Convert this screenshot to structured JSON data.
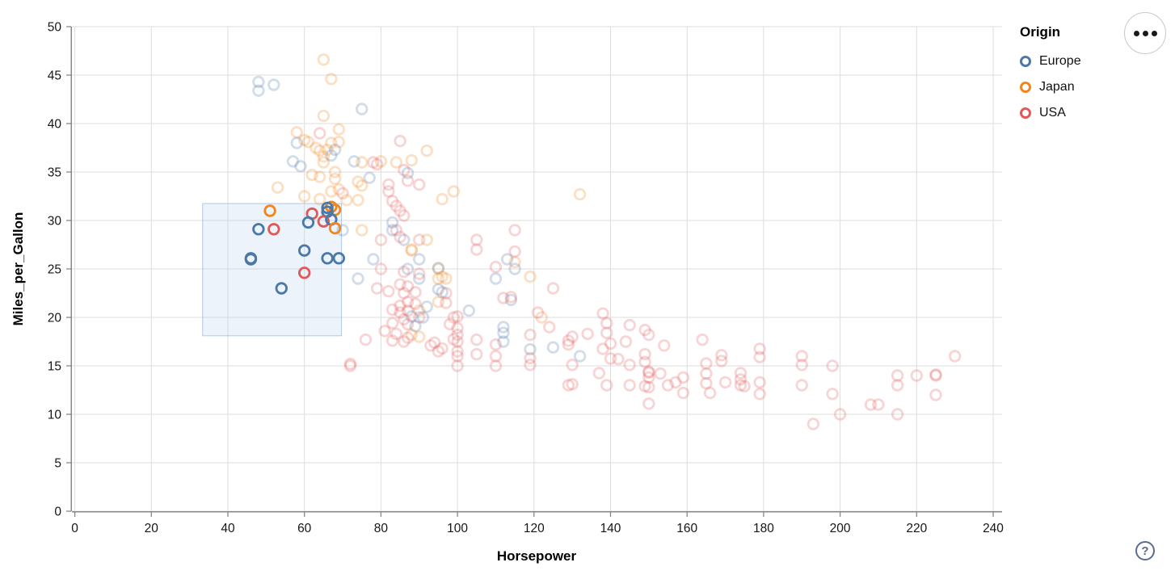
{
  "legend": {
    "title": "Origin",
    "items": [
      {
        "label": "Europe",
        "color": "#4c78a8"
      },
      {
        "label": "Japan",
        "color": "#f58518"
      },
      {
        "label": "USA",
        "color": "#e45756"
      }
    ]
  },
  "menu_button": {
    "icon": "ellipsis-icon"
  },
  "help_button": {
    "glyph": "?"
  },
  "chart_data": {
    "type": "scatter",
    "title": "",
    "xlabel": "Horsepower",
    "ylabel": "Miles_per_Gallon",
    "xlim": [
      0,
      240
    ],
    "ylim": [
      0,
      50
    ],
    "x_ticks": [
      0,
      20,
      40,
      60,
      80,
      100,
      120,
      140,
      160,
      180,
      200,
      220,
      240
    ],
    "y_ticks": [
      0,
      5,
      10,
      15,
      20,
      25,
      30,
      35,
      40,
      45,
      50
    ],
    "grid": true,
    "legend_position": "top-right",
    "mark": "open-circle",
    "unselected_opacity": 0.25,
    "origins": {
      "E": "Europe",
      "J": "Japan",
      "U": "USA"
    },
    "origin_colors": {
      "E": "#4c78a8",
      "J": "#f58518",
      "U": "#e45756"
    },
    "brush_selection": {
      "x": [
        33.4,
        69.7
      ],
      "y": [
        18.1,
        31.75
      ]
    },
    "selected_points": [
      [
        51,
        31,
        "J"
      ],
      [
        62,
        30.7,
        "U"
      ],
      [
        67,
        31.4,
        "J"
      ],
      [
        68,
        31.1,
        "J"
      ],
      [
        66,
        31.3,
        "E"
      ],
      [
        66,
        30.9,
        "E"
      ],
      [
        61,
        29.8,
        "E"
      ],
      [
        65,
        29.9,
        "U"
      ],
      [
        67,
        30.1,
        "E"
      ],
      [
        68,
        29.2,
        "J"
      ],
      [
        48,
        29.1,
        "E"
      ],
      [
        52,
        29.1,
        "U"
      ],
      [
        60,
        26.9,
        "E"
      ],
      [
        46,
        26,
        "E"
      ],
      [
        46,
        26.1,
        "E"
      ],
      [
        66,
        26.1,
        "E"
      ],
      [
        69,
        26.1,
        "E"
      ],
      [
        60,
        24.6,
        "U"
      ],
      [
        54,
        23,
        "E"
      ]
    ],
    "points": [
      [
        65,
        46.6,
        "J"
      ],
      [
        67,
        44.6,
        "J"
      ],
      [
        48,
        44.3,
        "E"
      ],
      [
        48,
        43.4,
        "E"
      ],
      [
        52,
        44,
        "E"
      ],
      [
        75,
        41.5,
        "E"
      ],
      [
        65,
        40.8,
        "J"
      ],
      [
        58,
        39.1,
        "J"
      ],
      [
        64,
        39,
        "U"
      ],
      [
        61,
        38.1,
        "J"
      ],
      [
        58,
        38,
        "E"
      ],
      [
        60,
        38.3,
        "J"
      ],
      [
        63,
        37.5,
        "J"
      ],
      [
        64,
        37.2,
        "J"
      ],
      [
        67,
        38,
        "J"
      ],
      [
        66,
        37.3,
        "J"
      ],
      [
        68,
        37.3,
        "E"
      ],
      [
        69,
        38.1,
        "J"
      ],
      [
        69,
        39.4,
        "J"
      ],
      [
        65,
        36.6,
        "J"
      ],
      [
        67,
        36.7,
        "E"
      ],
      [
        65,
        36,
        "J"
      ],
      [
        57,
        36.1,
        "E"
      ],
      [
        59,
        35.6,
        "E"
      ],
      [
        62,
        34.7,
        "J"
      ],
      [
        64,
        34.5,
        "J"
      ],
      [
        73,
        36.1,
        "E"
      ],
      [
        68,
        35,
        "J"
      ],
      [
        68,
        34.3,
        "J"
      ],
      [
        78,
        36,
        "U"
      ],
      [
        80,
        36.1,
        "J"
      ],
      [
        77,
        34.4,
        "E"
      ],
      [
        74,
        34,
        "J"
      ],
      [
        75,
        33.6,
        "J"
      ],
      [
        67,
        33,
        "J"
      ],
      [
        69,
        33.2,
        "J"
      ],
      [
        70,
        32.8,
        "U"
      ],
      [
        71,
        32.1,
        "J"
      ],
      [
        74,
        32.1,
        "J"
      ],
      [
        64,
        32.2,
        "J"
      ],
      [
        60,
        32.5,
        "J"
      ],
      [
        53,
        33.4,
        "J"
      ],
      [
        85,
        38.2,
        "U"
      ],
      [
        92,
        37.2,
        "J"
      ],
      [
        88,
        36.2,
        "J"
      ],
      [
        84,
        36,
        "J"
      ],
      [
        75,
        36,
        "J"
      ],
      [
        79,
        35.8,
        "U"
      ],
      [
        86,
        35.2,
        "U"
      ],
      [
        87,
        34.9,
        "E"
      ],
      [
        82,
        33.7,
        "U"
      ],
      [
        87,
        34.1,
        "U"
      ],
      [
        90,
        33.7,
        "U"
      ],
      [
        96,
        32.2,
        "J"
      ],
      [
        99,
        33,
        "J"
      ],
      [
        82,
        33,
        "U"
      ],
      [
        83,
        32,
        "U"
      ],
      [
        84,
        31.5,
        "U"
      ],
      [
        85,
        31,
        "U"
      ],
      [
        83,
        29.8,
        "E"
      ],
      [
        132,
        32.7,
        "J"
      ],
      [
        122,
        20,
        "J"
      ],
      [
        119,
        24.2,
        "J"
      ],
      [
        115,
        25.7,
        "J"
      ],
      [
        115,
        29,
        "U"
      ],
      [
        115,
        26.8,
        "U"
      ],
      [
        113,
        26,
        "E"
      ],
      [
        115,
        25,
        "E"
      ],
      [
        105,
        28,
        "U"
      ],
      [
        105,
        27,
        "U"
      ],
      [
        110,
        24,
        "E"
      ],
      [
        110,
        25.2,
        "U"
      ],
      [
        125,
        23,
        "U"
      ],
      [
        92,
        28,
        "J"
      ],
      [
        80,
        28,
        "U"
      ],
      [
        88,
        27,
        "J"
      ],
      [
        88,
        26.9,
        "J"
      ],
      [
        90,
        28,
        "U"
      ],
      [
        90,
        26,
        "E"
      ],
      [
        86,
        28,
        "E"
      ],
      [
        83,
        29,
        "E"
      ],
      [
        75,
        29,
        "J"
      ],
      [
        70,
        29,
        "E"
      ],
      [
        78,
        26,
        "E"
      ],
      [
        97,
        24,
        "J"
      ],
      [
        95,
        25,
        "J"
      ],
      [
        87,
        25,
        "E"
      ],
      [
        90,
        24,
        "E"
      ],
      [
        95,
        25.1,
        "E"
      ],
      [
        91,
        20,
        "E"
      ],
      [
        112,
        19,
        "E"
      ],
      [
        103,
        20.7,
        "E"
      ],
      [
        96,
        24.2,
        "J"
      ],
      [
        86,
        30.5,
        "U"
      ],
      [
        84,
        29,
        "U"
      ],
      [
        85,
        28.3,
        "U"
      ],
      [
        80,
        25,
        "U"
      ],
      [
        86,
        24.7,
        "U"
      ],
      [
        90,
        24.5,
        "U"
      ],
      [
        95,
        24,
        "J"
      ],
      [
        97,
        22.5,
        "U"
      ],
      [
        85,
        23.4,
        "U"
      ],
      [
        87,
        23.2,
        "U"
      ],
      [
        79,
        23,
        "U"
      ],
      [
        82,
        22.7,
        "U"
      ],
      [
        86,
        22.5,
        "U"
      ],
      [
        89,
        22.6,
        "U"
      ],
      [
        96,
        22.6,
        "E"
      ],
      [
        95,
        22.9,
        "E"
      ],
      [
        74,
        24,
        "E"
      ],
      [
        85,
        21.2,
        "U"
      ],
      [
        87,
        21.6,
        "U"
      ],
      [
        89,
        21.4,
        "U"
      ],
      [
        92,
        21.1,
        "E"
      ],
      [
        95,
        21.6,
        "J"
      ],
      [
        97,
        21.5,
        "U"
      ],
      [
        83,
        20.8,
        "U"
      ],
      [
        85,
        20.5,
        "U"
      ],
      [
        87,
        20.7,
        "U"
      ],
      [
        90,
        20.7,
        "J"
      ],
      [
        88,
        20.1,
        "E"
      ],
      [
        90,
        20,
        "U"
      ],
      [
        86,
        19.8,
        "U"
      ],
      [
        99,
        20,
        "U"
      ],
      [
        100,
        20.1,
        "U"
      ],
      [
        83,
        19.4,
        "U"
      ],
      [
        87,
        19.3,
        "U"
      ],
      [
        89,
        19.1,
        "E"
      ],
      [
        98,
        19.3,
        "U"
      ],
      [
        100,
        18.9,
        "U"
      ],
      [
        81,
        18.6,
        "U"
      ],
      [
        84,
        18.3,
        "U"
      ],
      [
        88,
        18.2,
        "J"
      ],
      [
        87,
        17.9,
        "U"
      ],
      [
        100,
        18.2,
        "U"
      ],
      [
        99,
        17.75,
        "U"
      ],
      [
        93,
        17.1,
        "U"
      ],
      [
        96,
        16.8,
        "U"
      ],
      [
        95,
        16.5,
        "U"
      ],
      [
        72,
        15,
        "U"
      ],
      [
        72,
        15.2,
        "U"
      ],
      [
        100,
        17.5,
        "U"
      ],
      [
        100,
        16.5,
        "U"
      ],
      [
        100,
        16,
        "U"
      ],
      [
        100,
        15,
        "U"
      ],
      [
        105,
        17.7,
        "U"
      ],
      [
        105,
        16.2,
        "U"
      ],
      [
        110,
        17.2,
        "U"
      ],
      [
        110,
        16,
        "U"
      ],
      [
        110,
        15,
        "U"
      ],
      [
        112,
        17.5,
        "E"
      ],
      [
        119,
        16.7,
        "E"
      ],
      [
        119,
        15.8,
        "U"
      ],
      [
        119,
        15.1,
        "U"
      ],
      [
        76,
        17.7,
        "U"
      ],
      [
        83,
        17.6,
        "U"
      ],
      [
        86,
        17.5,
        "U"
      ],
      [
        90,
        18,
        "J"
      ],
      [
        94,
        17.4,
        "U"
      ],
      [
        112,
        22,
        "U"
      ],
      [
        114,
        21.8,
        "E"
      ],
      [
        114,
        22.1,
        "U"
      ],
      [
        112,
        18.4,
        "E"
      ],
      [
        119,
        18.2,
        "U"
      ],
      [
        121,
        20.5,
        "U"
      ],
      [
        124,
        19,
        "U"
      ],
      [
        125,
        16.9,
        "E"
      ],
      [
        132,
        16,
        "E"
      ],
      [
        130,
        18,
        "U"
      ],
      [
        129,
        17.6,
        "U"
      ],
      [
        129,
        17.2,
        "U"
      ],
      [
        134,
        18.3,
        "U"
      ],
      [
        130,
        15.1,
        "U"
      ],
      [
        129,
        13,
        "U"
      ],
      [
        130,
        13.1,
        "U"
      ],
      [
        138,
        20.4,
        "U"
      ],
      [
        139,
        19.4,
        "U"
      ],
      [
        139,
        18.4,
        "U"
      ],
      [
        140,
        17.3,
        "U"
      ],
      [
        138,
        16.75,
        "U"
      ],
      [
        140,
        15.75,
        "U"
      ],
      [
        137,
        14.25,
        "U"
      ],
      [
        139,
        13,
        "U"
      ],
      [
        142,
        15.7,
        "U"
      ],
      [
        145,
        19.2,
        "U"
      ],
      [
        144,
        17.5,
        "U"
      ],
      [
        145,
        15.1,
        "U"
      ],
      [
        145,
        13,
        "U"
      ],
      [
        149,
        18.7,
        "U"
      ],
      [
        150,
        18.2,
        "U"
      ],
      [
        149,
        16.2,
        "U"
      ],
      [
        149,
        15.4,
        "U"
      ],
      [
        150,
        14.4,
        "U"
      ],
      [
        150,
        14.3,
        "U"
      ],
      [
        150,
        13.8,
        "U"
      ],
      [
        149,
        12.9,
        "U"
      ],
      [
        150,
        12.8,
        "U"
      ],
      [
        150,
        11.1,
        "U"
      ],
      [
        153,
        14.2,
        "U"
      ],
      [
        154,
        17.1,
        "U"
      ],
      [
        155,
        13,
        "U"
      ],
      [
        157,
        13.3,
        "U"
      ],
      [
        159,
        12.2,
        "U"
      ],
      [
        159,
        13.8,
        "U"
      ],
      [
        164,
        17.7,
        "U"
      ],
      [
        165,
        15.25,
        "U"
      ],
      [
        165,
        14.2,
        "U"
      ],
      [
        165,
        13.2,
        "U"
      ],
      [
        166,
        12.2,
        "U"
      ],
      [
        169,
        16.1,
        "U"
      ],
      [
        169,
        15.5,
        "U"
      ],
      [
        170,
        13.3,
        "U"
      ],
      [
        174,
        14.25,
        "U"
      ],
      [
        174,
        13.6,
        "U"
      ],
      [
        174,
        13,
        "U"
      ],
      [
        175,
        12.9,
        "U"
      ],
      [
        179,
        16.75,
        "U"
      ],
      [
        179,
        15.9,
        "U"
      ],
      [
        179,
        13.3,
        "U"
      ],
      [
        179,
        12.1,
        "U"
      ],
      [
        190,
        16,
        "U"
      ],
      [
        190,
        15.1,
        "U"
      ],
      [
        190,
        13,
        "U"
      ],
      [
        198,
        15,
        "U"
      ],
      [
        198,
        12.1,
        "U"
      ],
      [
        200,
        10,
        "U"
      ],
      [
        193,
        9,
        "U"
      ],
      [
        208,
        11,
        "U"
      ],
      [
        210,
        11,
        "U"
      ],
      [
        215,
        14,
        "U"
      ],
      [
        215,
        13,
        "U"
      ],
      [
        215,
        10,
        "U"
      ],
      [
        220,
        14,
        "U"
      ],
      [
        225,
        14,
        "U"
      ],
      [
        225,
        14.1,
        "U"
      ],
      [
        225,
        12,
        "U"
      ],
      [
        230,
        16,
        "U"
      ]
    ]
  }
}
